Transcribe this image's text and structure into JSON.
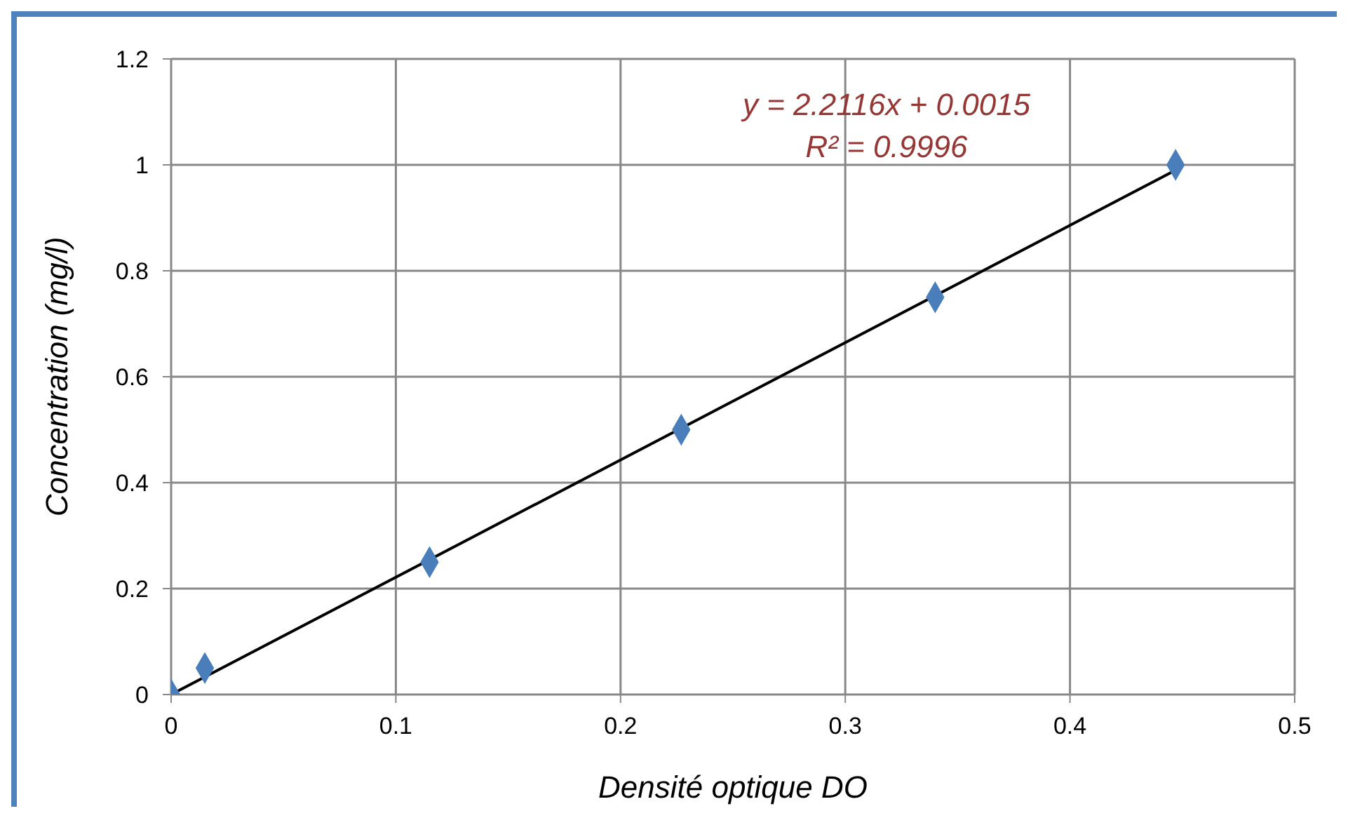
{
  "chart_data": {
    "type": "scatter",
    "xlabel": "Densité optique DO",
    "ylabel": "Concentration (mg/l)",
    "annotations": [
      "y = 2.2116x  + 0.0015",
      "R² = 0.9996"
    ],
    "x": [
      0,
      0.015,
      0.115,
      0.227,
      0.34,
      0.447
    ],
    "series": [
      {
        "color": "#4a7ebb",
        "values": [
          0,
          0.05,
          0.25,
          0.5,
          0.75,
          1.0
        ],
        "marker": "diamond"
      },
      {
        "type": "line",
        "color": "#000000",
        "x": [
          0,
          0.447
        ],
        "values": [
          0,
          0.99
        ],
        "marker": "none",
        "line_style": "solid"
      }
    ],
    "xlim": [
      0,
      0.5
    ],
    "xticks": [
      0,
      0.1,
      0.2,
      0.3,
      0.4,
      0.5
    ],
    "ylim": [
      0,
      1.2
    ],
    "yticks": [
      0,
      0.2,
      0.4,
      0.6,
      0.8,
      1,
      1.2
    ],
    "grid": true,
    "legend": false
  }
}
